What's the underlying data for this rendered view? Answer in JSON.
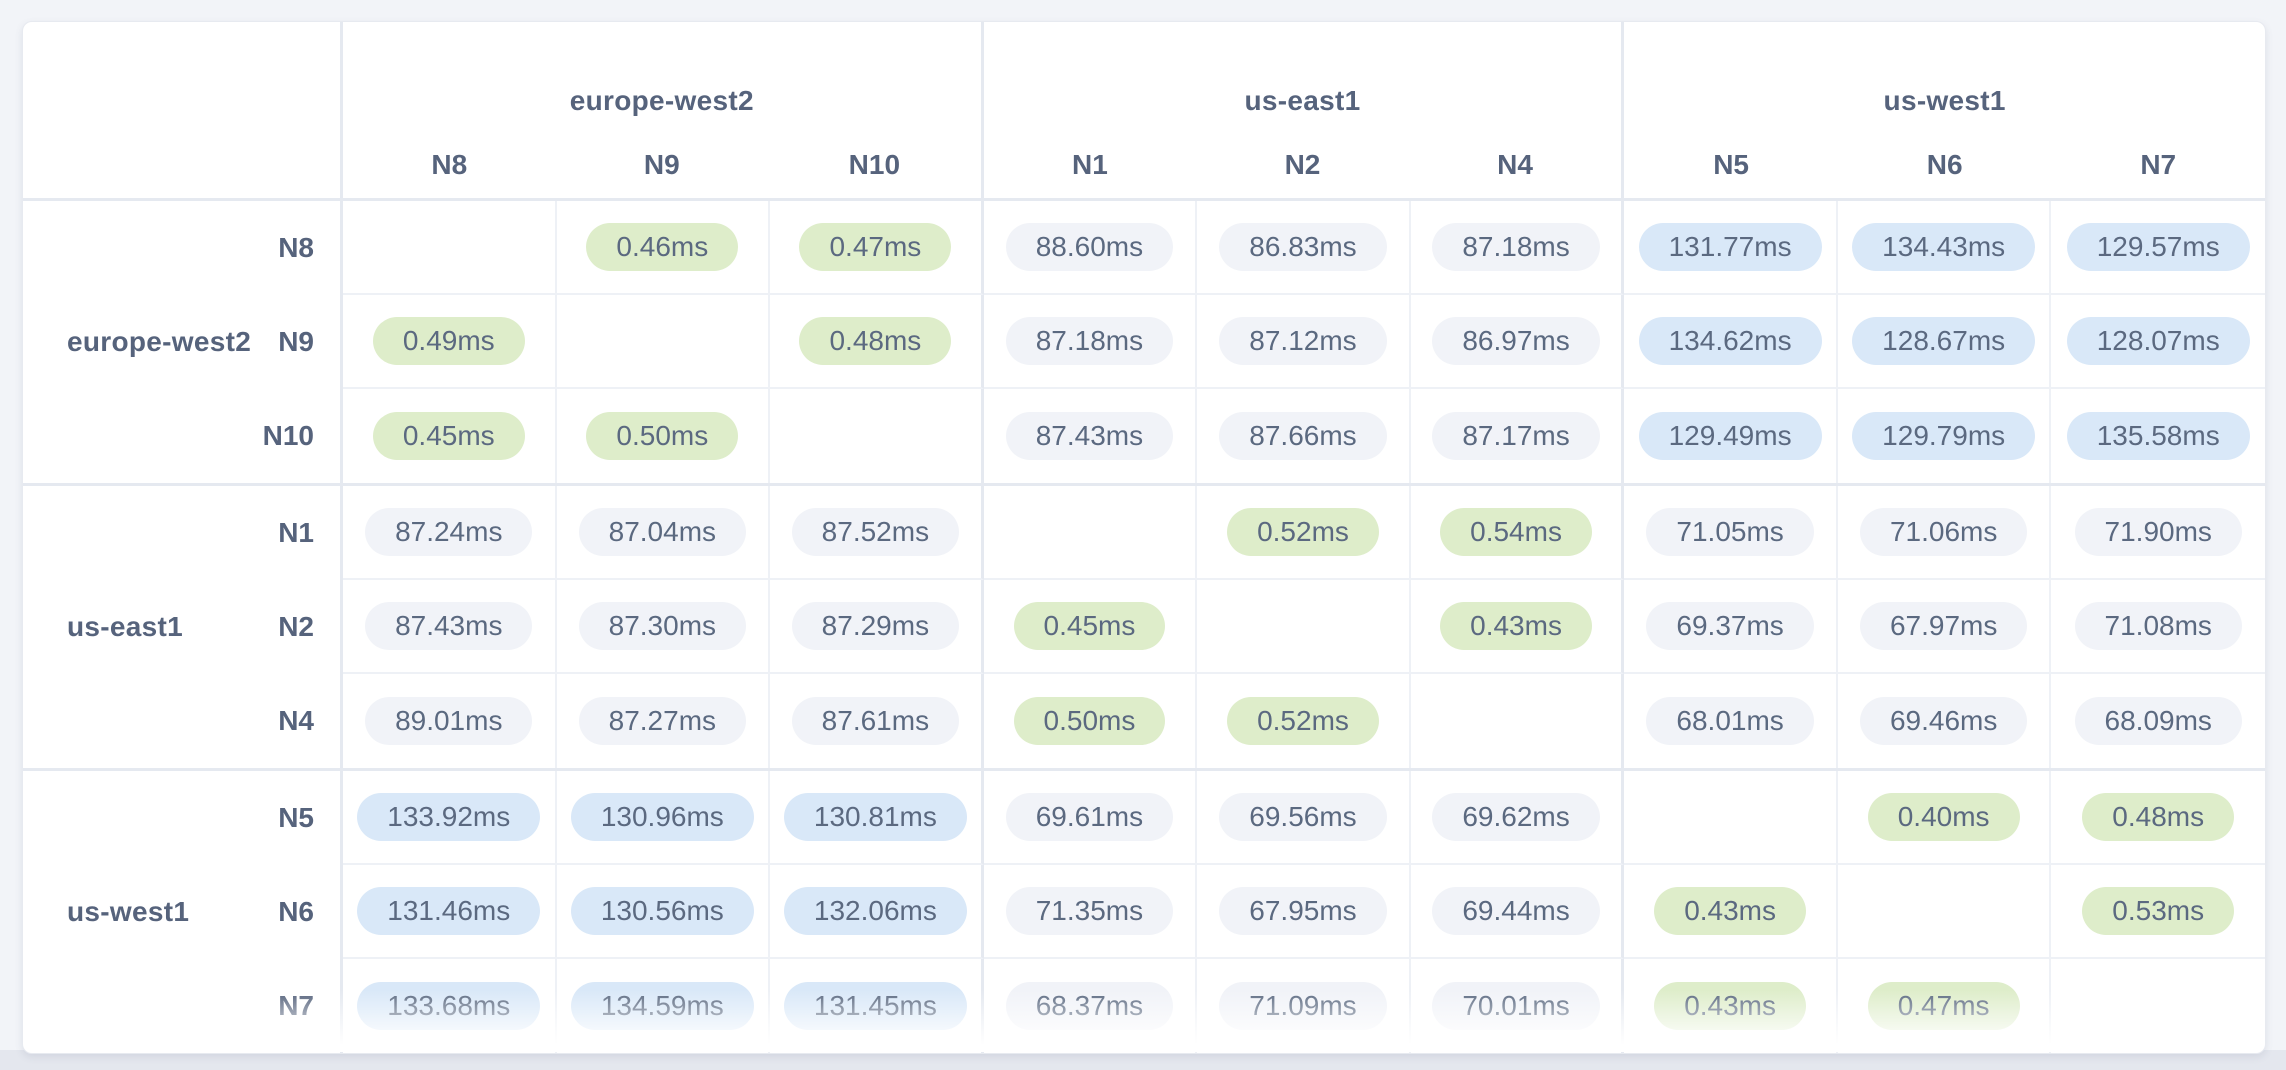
{
  "page": {
    "background": "#f2f4f8",
    "card_background": "#ffffff",
    "bottom_strip_color": "#e4e7ee"
  },
  "colors": {
    "pill_green": "#deedca",
    "pill_gray": "#f1f3f8",
    "pill_blue": "#d9e8f8",
    "pill_text": "#5b6980",
    "label_text": "#56637c",
    "grid_line_light": "#eef1f6",
    "grid_line_strong": "#e5e9f0"
  },
  "matrix": {
    "unit": "ms",
    "regions": [
      {
        "name": "europe-west2",
        "nodes": [
          "N8",
          "N9",
          "N10"
        ]
      },
      {
        "name": "us-east1",
        "nodes": [
          "N1",
          "N2",
          "N4"
        ]
      },
      {
        "name": "us-west1",
        "nodes": [
          "N5",
          "N6",
          "N7"
        ]
      }
    ],
    "tier_thresholds": {
      "green_below_ms": 1,
      "gray_below_ms": 100
    },
    "cells": [
      [
        null,
        "0.46ms",
        "0.47ms",
        "88.60ms",
        "86.83ms",
        "87.18ms",
        "131.77ms",
        "134.43ms",
        "129.57ms"
      ],
      [
        "0.49ms",
        null,
        "0.48ms",
        "87.18ms",
        "87.12ms",
        "86.97ms",
        "134.62ms",
        "128.67ms",
        "128.07ms"
      ],
      [
        "0.45ms",
        "0.50ms",
        null,
        "87.43ms",
        "87.66ms",
        "87.17ms",
        "129.49ms",
        "129.79ms",
        "135.58ms"
      ],
      [
        "87.24ms",
        "87.04ms",
        "87.52ms",
        null,
        "0.52ms",
        "0.54ms",
        "71.05ms",
        "71.06ms",
        "71.90ms"
      ],
      [
        "87.43ms",
        "87.30ms",
        "87.29ms",
        "0.45ms",
        null,
        "0.43ms",
        "69.37ms",
        "67.97ms",
        "71.08ms"
      ],
      [
        "89.01ms",
        "87.27ms",
        "87.61ms",
        "0.50ms",
        "0.52ms",
        null,
        "68.01ms",
        "69.46ms",
        "68.09ms"
      ],
      [
        "133.92ms",
        "130.96ms",
        "130.81ms",
        "69.61ms",
        "69.56ms",
        "69.62ms",
        null,
        "0.40ms",
        "0.48ms"
      ],
      [
        "131.46ms",
        "130.56ms",
        "132.06ms",
        "71.35ms",
        "67.95ms",
        "69.44ms",
        "0.43ms",
        null,
        "0.53ms"
      ],
      [
        "133.68ms",
        "134.59ms",
        "131.45ms",
        "68.37ms",
        "71.09ms",
        "70.01ms",
        "0.43ms",
        "0.47ms",
        null
      ]
    ]
  },
  "chart_data": {
    "type": "heatmap",
    "title": "Node-to-node network latency matrix",
    "unit": "ms",
    "x_groups": [
      "europe-west2",
      "us-east1",
      "us-west1"
    ],
    "x": [
      "N8",
      "N9",
      "N10",
      "N1",
      "N2",
      "N4",
      "N5",
      "N6",
      "N7"
    ],
    "y": [
      "N8",
      "N9",
      "N10",
      "N1",
      "N2",
      "N4",
      "N5",
      "N6",
      "N7"
    ],
    "values": [
      [
        null,
        0.46,
        0.47,
        88.6,
        86.83,
        87.18,
        131.77,
        134.43,
        129.57
      ],
      [
        0.49,
        null,
        0.48,
        87.18,
        87.12,
        86.97,
        134.62,
        128.67,
        128.07
      ],
      [
        0.45,
        0.5,
        null,
        87.43,
        87.66,
        87.17,
        129.49,
        129.79,
        135.58
      ],
      [
        87.24,
        87.04,
        87.52,
        null,
        0.52,
        0.54,
        71.05,
        71.06,
        71.9
      ],
      [
        87.43,
        87.3,
        87.29,
        0.45,
        null,
        0.43,
        69.37,
        67.97,
        71.08
      ],
      [
        89.01,
        87.27,
        87.61,
        0.5,
        0.52,
        null,
        68.01,
        69.46,
        68.09
      ],
      [
        133.92,
        130.96,
        130.81,
        69.61,
        69.56,
        69.62,
        null,
        0.4,
        0.48
      ],
      [
        131.46,
        130.56,
        132.06,
        71.35,
        67.95,
        69.44,
        0.43,
        null,
        0.53
      ],
      [
        133.68,
        134.59,
        131.45,
        68.37,
        71.09,
        70.01,
        0.43,
        0.47,
        null
      ]
    ]
  }
}
